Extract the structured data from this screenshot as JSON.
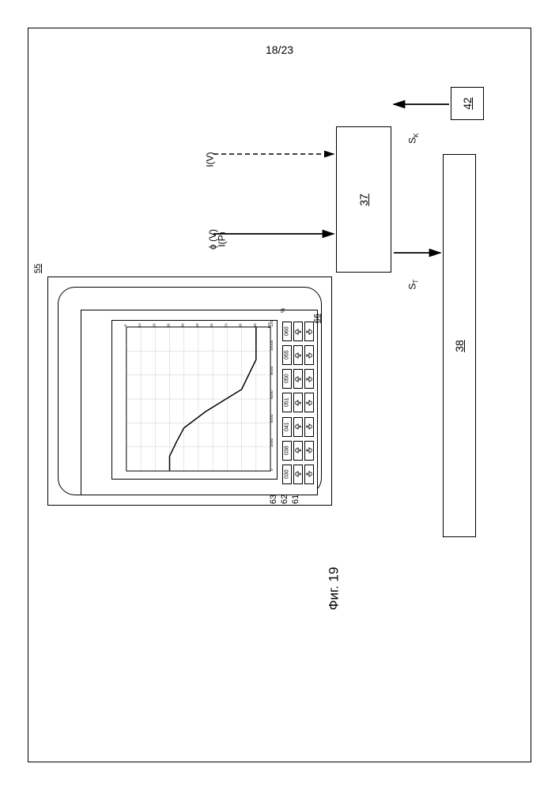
{
  "page_number": "18/23",
  "figure_caption": "Фиг. 19",
  "device": {
    "ref": "55",
    "screen_ref": "66"
  },
  "chart": {
    "type": "line",
    "y_ticks": [
      "0",
      "10",
      "20",
      "30",
      "40",
      "50",
      "60",
      "70",
      "80",
      "90",
      "100"
    ],
    "x_ticks": [
      "0",
      "2000",
      "4000",
      "6000",
      "8000",
      "10000",
      "12000"
    ],
    "curve_points": [
      [
        0,
        30
      ],
      [
        20,
        30
      ],
      [
        40,
        35
      ],
      [
        58,
        40
      ],
      [
        80,
        55
      ],
      [
        110,
        80
      ],
      [
        150,
        90
      ],
      [
        194,
        90
      ]
    ],
    "line_color": "#000000",
    "grid_color": "#cccccc",
    "axis_color": "#000000",
    "background_color": "#ffffff"
  },
  "button_rows": {
    "percent_label": "%",
    "values": [
      "030",
      "038",
      "041",
      "051",
      "050",
      "055",
      "060"
    ],
    "row_refs": {
      "value_row": "63",
      "up_row": "62",
      "down_row": "61"
    }
  },
  "blocks": {
    "b37": "37",
    "b42": "42",
    "b38": "38"
  },
  "signals": {
    "iv_dashed": "I(V)",
    "phi_v": "ϕ (V)",
    "ip": "I(P)",
    "sk": "S",
    "sk_sub": "K",
    "st": "S",
    "st_sub": "T"
  },
  "colors": {
    "stroke": "#000000",
    "bg": "#ffffff"
  }
}
